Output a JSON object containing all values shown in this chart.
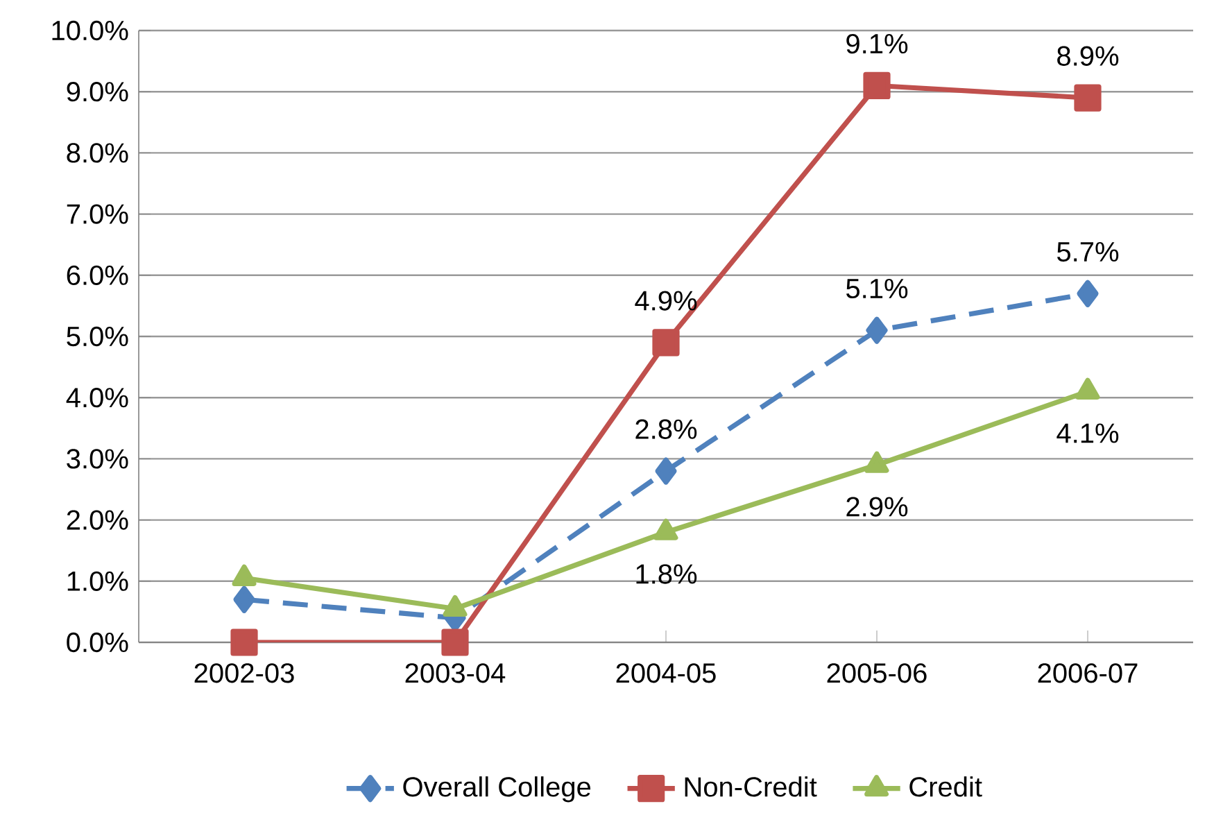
{
  "chart_data": {
    "type": "line",
    "categories": [
      "2002-03",
      "2003-04",
      "2004-05",
      "2005-06",
      "2006-07"
    ],
    "series": [
      {
        "name": "Overall College",
        "color": "#4f81bd",
        "marker": "diamond",
        "line_style": "dashed",
        "values": [
          0.7,
          0.4,
          2.8,
          5.1,
          5.7
        ],
        "value_labels": [
          null,
          null,
          "2.8%",
          "5.1%",
          "5.7%"
        ]
      },
      {
        "name": "Non-Credit",
        "color": "#c0504d",
        "marker": "square",
        "line_style": "solid",
        "values": [
          0,
          0,
          4.9,
          9.1,
          8.9
        ],
        "value_labels": [
          null,
          null,
          "4.9%",
          "9.1%",
          "8.9%"
        ]
      },
      {
        "name": "Credit",
        "color": "#9bbb59",
        "marker": "triangle",
        "line_style": "solid",
        "values": [
          1.05,
          0.55,
          1.8,
          2.9,
          4.1
        ],
        "value_labels": [
          null,
          null,
          "1.8%",
          "2.9%",
          "4.1%"
        ]
      }
    ],
    "ylim": [
      0,
      10
    ],
    "yticks": [
      {
        "value": 0,
        "label": "0.0%"
      },
      {
        "value": 1,
        "label": "1.0%"
      },
      {
        "value": 2,
        "label": "2.0%"
      },
      {
        "value": 3,
        "label": "3.0%"
      },
      {
        "value": 4,
        "label": "4.0%"
      },
      {
        "value": 5,
        "label": "5.0%"
      },
      {
        "value": 6,
        "label": "6.0%"
      },
      {
        "value": 7,
        "label": "7.0%"
      },
      {
        "value": 8,
        "label": "8.0%"
      },
      {
        "value": 9,
        "label": "9.0%"
      },
      {
        "value": 10,
        "label": "10.0%"
      }
    ],
    "grid": "y",
    "legend": "bottom"
  }
}
